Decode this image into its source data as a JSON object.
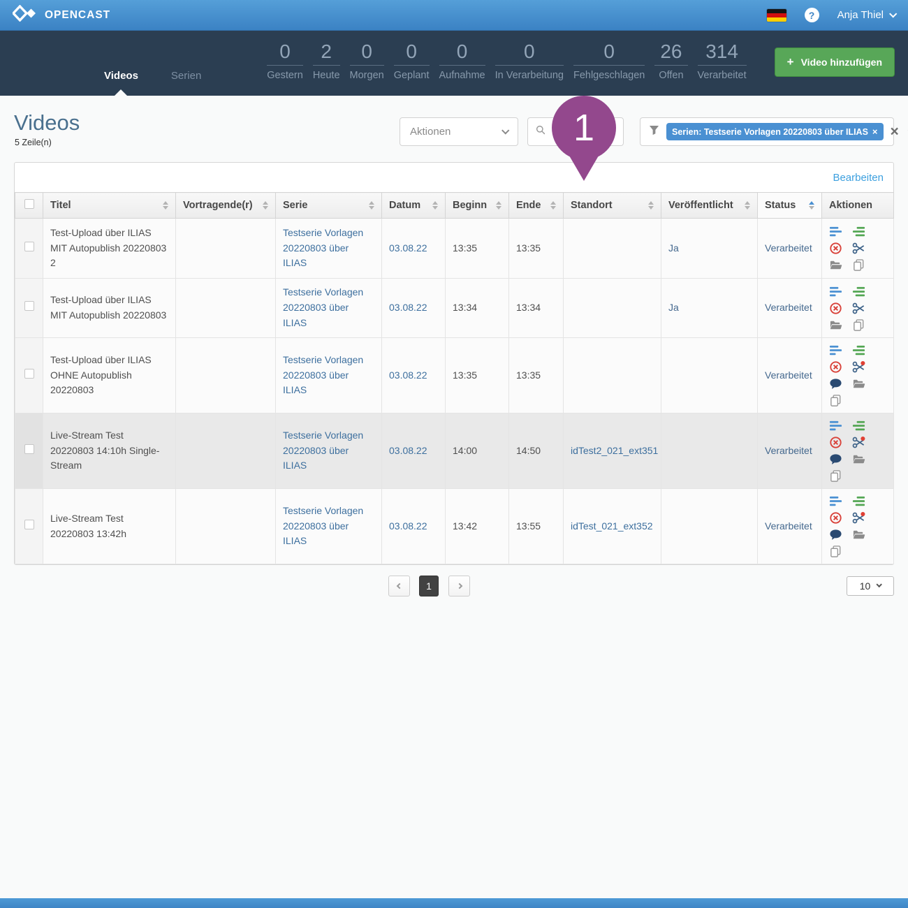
{
  "colors": {
    "brand_blue": "#3d84c6",
    "nav_dark": "#2b3e52",
    "accent_green": "#58a758",
    "chip_blue": "#4a90d2",
    "link_blue": "#3d6f9e",
    "marker_purple": "#93488d",
    "delete_red": "#d9433b",
    "highlight_row": "#e9e9e9"
  },
  "header": {
    "brand": "OPENCAST",
    "language_flag": "german-flag",
    "help": "?",
    "user": "Anja Thiel"
  },
  "nav": {
    "tabs": [
      {
        "label": "Videos",
        "active": true
      },
      {
        "label": "Serien",
        "active": false
      }
    ],
    "stats": [
      {
        "value": "0",
        "label": "Gestern"
      },
      {
        "value": "2",
        "label": "Heute"
      },
      {
        "value": "0",
        "label": "Morgen"
      },
      {
        "value": "0",
        "label": "Geplant"
      },
      {
        "value": "0",
        "label": "Aufnahme"
      },
      {
        "value": "0",
        "label": "In Verarbeitung"
      },
      {
        "value": "0",
        "label": "Fehlgeschlagen"
      },
      {
        "value": "26",
        "label": "Offen"
      },
      {
        "value": "314",
        "label": "Verarbeitet"
      }
    ],
    "add_video_label": "Video hinzufügen",
    "add_video_plus": "+"
  },
  "page": {
    "title": "Videos",
    "row_count": "5 Zeile(n)",
    "actions_dropdown": "Aktionen",
    "search_value": "",
    "filter_chip": "Serien: Testserie Vorlagen 20220803 über ILIAS",
    "chip_remove": "×",
    "clear_filters": "×",
    "edit_link": "Bearbeiten",
    "marker_label": "1"
  },
  "table": {
    "columns": [
      {
        "label": "Titel",
        "sortable": true,
        "sorted": false
      },
      {
        "label": "Vortragende(r)",
        "sortable": true,
        "sorted": false
      },
      {
        "label": "Serie",
        "sortable": true,
        "sorted": false
      },
      {
        "label": "Datum",
        "sortable": true,
        "sorted": false
      },
      {
        "label": "Beginn",
        "sortable": true,
        "sorted": false
      },
      {
        "label": "Ende",
        "sortable": true,
        "sorted": false
      },
      {
        "label": "Standort",
        "sortable": true,
        "sorted": false
      },
      {
        "label": "Veröffentlicht",
        "sortable": true,
        "sorted": false
      },
      {
        "label": "Status",
        "sortable": true,
        "sorted": true
      },
      {
        "label": "Aktionen",
        "sortable": false,
        "sorted": false
      }
    ],
    "rows": [
      {
        "title": "Test-Upload über ILIAS MIT Autopublish 20220803 2",
        "presenter": "",
        "series": "Testserie Vorlagen 20220803 über ILIAS",
        "date": "03.08.22",
        "start": "13:35",
        "end": "13:35",
        "location": "",
        "published": "Ja",
        "status": "Verarbeitet",
        "highlighted": false,
        "actions": [
          "metadata-icon",
          "publish-icon",
          "delete-icon",
          "cut-icon",
          "assets-icon",
          "duplicate-icon"
        ]
      },
      {
        "title": "Test-Upload über ILIAS MIT Autopublish 20220803",
        "presenter": "",
        "series": "Testserie Vorlagen 20220803 über ILIAS",
        "date": "03.08.22",
        "start": "13:34",
        "end": "13:34",
        "location": "",
        "published": "Ja",
        "status": "Verarbeitet",
        "highlighted": false,
        "actions": [
          "metadata-icon",
          "publish-icon",
          "delete-icon",
          "cut-icon",
          "assets-icon",
          "duplicate-icon"
        ]
      },
      {
        "title": "Test-Upload über ILIAS OHNE Autopublish 20220803",
        "presenter": "",
        "series": "Testserie Vorlagen 20220803 über ILIAS",
        "date": "03.08.22",
        "start": "13:35",
        "end": "13:35",
        "location": "",
        "published": "",
        "status": "Verarbeitet",
        "highlighted": false,
        "actions": [
          "metadata-icon",
          "publish-icon",
          "delete-icon",
          "cut-notification-icon",
          "comments-icon",
          "assets-icon",
          "duplicate-icon"
        ]
      },
      {
        "title": "Live-Stream Test 20220803 14:10h Single-Stream",
        "presenter": "",
        "series": "Testserie Vorlagen 20220803 über ILIAS",
        "date": "03.08.22",
        "start": "14:00",
        "end": "14:50",
        "location": "idTest2_021_ext351",
        "published": "",
        "status": "Verarbeitet",
        "highlighted": true,
        "actions": [
          "metadata-icon",
          "publish-icon",
          "delete-icon",
          "cut-notification-icon",
          "comments-icon",
          "assets-icon",
          "duplicate-icon"
        ]
      },
      {
        "title": "Live-Stream Test 20220803 13:42h",
        "presenter": "",
        "series": "Testserie Vorlagen 20220803 über ILIAS",
        "date": "03.08.22",
        "start": "13:42",
        "end": "13:55",
        "location": "idTest_021_ext352",
        "published": "",
        "status": "Verarbeitet",
        "highlighted": false,
        "actions": [
          "metadata-icon",
          "publish-icon",
          "delete-icon",
          "cut-notification-icon",
          "comments-icon",
          "assets-icon",
          "duplicate-icon"
        ]
      }
    ]
  },
  "pagination": {
    "current_page": "1",
    "page_size": "10"
  }
}
